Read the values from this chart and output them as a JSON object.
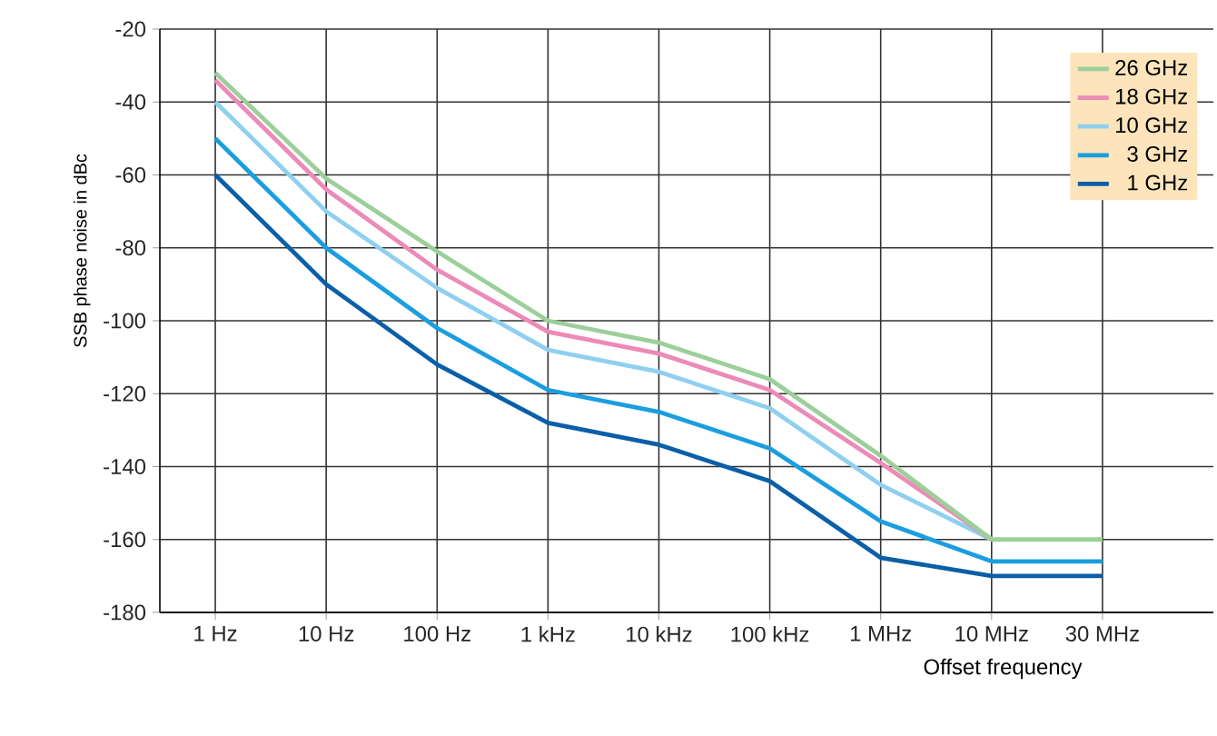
{
  "chart_data": {
    "type": "line",
    "xlabel": "Offset frequency",
    "ylabel": "SSB phase noise in dBc",
    "categories": [
      "1 Hz",
      "10 Hz",
      "100 Hz",
      "1 kHz",
      "10 kHz",
      "100 kHz",
      "1 MHz",
      "10 MHz",
      "30 MHz"
    ],
    "series": [
      {
        "name": "26 GHz",
        "color": "#9ccf9a",
        "values": [
          -32,
          -61,
          -81,
          -100,
          -106,
          -116,
          -137,
          -160,
          -160
        ]
      },
      {
        "name": "18 GHz",
        "color": "#ec8ab8",
        "values": [
          -34,
          -64,
          -86,
          -103,
          -109,
          -119,
          -139,
          -160,
          null
        ]
      },
      {
        "name": "10 GHz",
        "color": "#8fd0f0",
        "values": [
          -40,
          -70,
          -91,
          -108,
          -114,
          -124,
          -145,
          -160,
          null
        ]
      },
      {
        "name": "3 GHz",
        "color": "#1a9ee0",
        "values": [
          -50,
          -80,
          -102,
          -119,
          -125,
          -135,
          -155,
          -166,
          -166
        ]
      },
      {
        "name": "1 GHz",
        "color": "#0a5fa8",
        "values": [
          -60,
          -90,
          -112,
          -128,
          -134,
          -144,
          -165,
          -170,
          -170
        ]
      }
    ],
    "ylim": [
      -180,
      -20
    ],
    "yticks": [
      -180,
      -160,
      -140,
      -120,
      -100,
      -80,
      -60,
      -40,
      -20
    ],
    "grid": true,
    "legend": "top right",
    "marker": "none",
    "line_style": "solid"
  }
}
